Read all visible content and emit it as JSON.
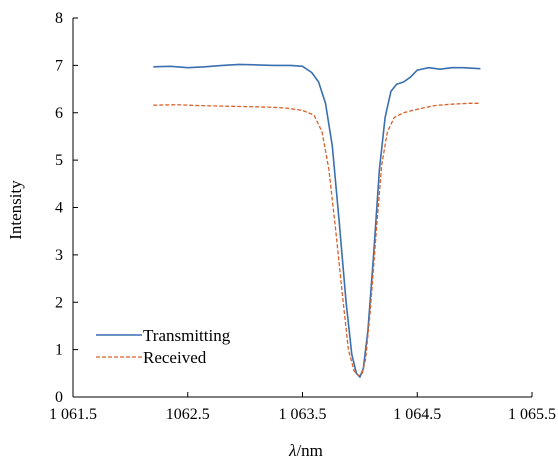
{
  "chart_data": {
    "type": "line",
    "xlabel_var": "λ",
    "xlabel_unit": "/nm",
    "ylabel": "Intensity",
    "xlim": [
      1061.5,
      1065.5
    ],
    "ylim": [
      0,
      8
    ],
    "x_ticks": [
      1061.5,
      1062.5,
      1063.5,
      1064.5,
      1065.5
    ],
    "x_tick_labels": [
      "1 061.5",
      "1062.5",
      "1 063.5",
      "1 064.5",
      "1 065.5"
    ],
    "y_ticks": [
      0,
      1,
      2,
      3,
      4,
      5,
      6,
      7,
      8
    ],
    "y_tick_labels": [
      "0",
      "1",
      "2",
      "3",
      "4",
      "5",
      "6",
      "7",
      "8"
    ],
    "grid": false,
    "legend_position": "bottom-left",
    "series": [
      {
        "name": "Transmitting",
        "color": "#3a6fb0",
        "style": "solid",
        "x": [
          1062.2,
          1062.35,
          1062.5,
          1062.65,
          1062.8,
          1062.95,
          1063.1,
          1063.25,
          1063.4,
          1063.5,
          1063.58,
          1063.64,
          1063.7,
          1063.76,
          1063.82,
          1063.88,
          1063.93,
          1063.97,
          1064.0,
          1064.03,
          1064.07,
          1064.12,
          1064.17,
          1064.22,
          1064.27,
          1064.32,
          1064.38,
          1064.44,
          1064.5,
          1064.6,
          1064.7,
          1064.8,
          1064.9,
          1065.05
        ],
        "y": [
          6.97,
          6.98,
          6.95,
          6.97,
          7.0,
          7.02,
          7.01,
          7.0,
          7.0,
          6.98,
          6.85,
          6.65,
          6.2,
          5.3,
          3.7,
          2.0,
          0.9,
          0.5,
          0.42,
          0.6,
          1.4,
          3.0,
          4.8,
          5.9,
          6.45,
          6.6,
          6.65,
          6.75,
          6.9,
          6.95,
          6.92,
          6.95,
          6.95,
          6.93
        ]
      },
      {
        "name": "Received",
        "color": "#d9622b",
        "style": "dashed",
        "x": [
          1062.2,
          1062.4,
          1062.6,
          1062.8,
          1063.0,
          1063.2,
          1063.35,
          1063.5,
          1063.6,
          1063.67,
          1063.73,
          1063.79,
          1063.85,
          1063.9,
          1063.95,
          1063.99,
          1064.02,
          1064.05,
          1064.09,
          1064.14,
          1064.19,
          1064.24,
          1064.3,
          1064.38,
          1064.46,
          1064.55,
          1064.65,
          1064.8,
          1064.95,
          1065.05
        ],
        "y": [
          6.16,
          6.17,
          6.15,
          6.14,
          6.13,
          6.12,
          6.1,
          6.05,
          5.95,
          5.6,
          4.8,
          3.5,
          2.1,
          1.0,
          0.55,
          0.45,
          0.5,
          0.8,
          1.8,
          3.4,
          4.9,
          5.6,
          5.9,
          6.0,
          6.05,
          6.1,
          6.15,
          6.18,
          6.2,
          6.2
        ]
      }
    ]
  }
}
